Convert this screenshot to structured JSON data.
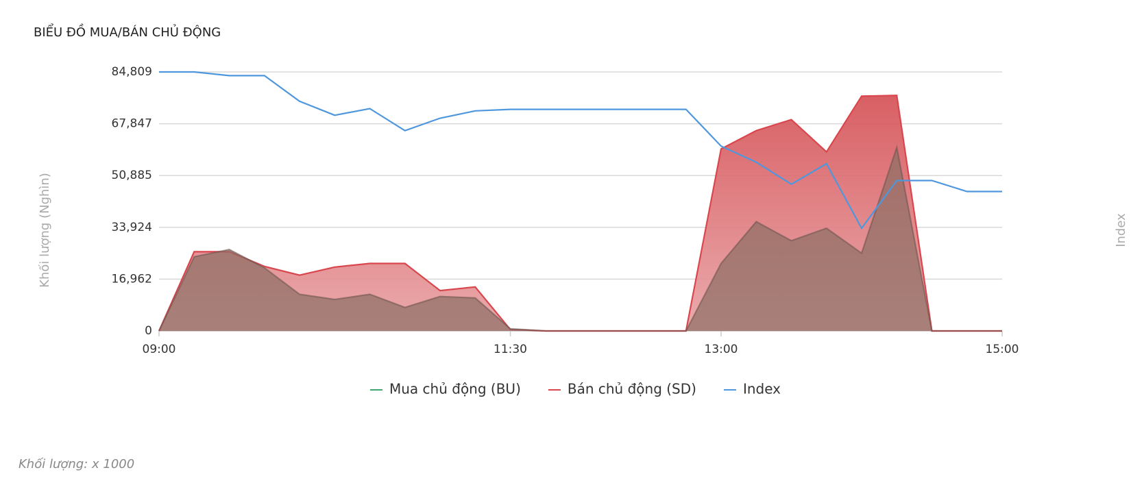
{
  "chart_data": {
    "type": "area",
    "title": "BIỂU ĐỒ MUA/BÁN CHỦ ĐỘNG",
    "y_label": "Khối lượng (Nghìn)",
    "y2_label": "Index",
    "footnote": "Khối lượng: x 1000",
    "categories": [
      "09:00",
      null,
      null,
      null,
      null,
      null,
      null,
      null,
      null,
      null,
      "11:30",
      null,
      null,
      null,
      null,
      null,
      "13:00",
      null,
      null,
      null,
      null,
      null,
      null,
      null,
      "15:00"
    ],
    "ylim": [
      0,
      84809
    ],
    "yticks": [
      0,
      {
        "value": 16962,
        "label": "16,962"
      },
      {
        "value": 33924,
        "label": "33,924"
      },
      {
        "value": 50885,
        "label": "50,885"
      },
      {
        "value": 67847,
        "label": "67,847"
      },
      {
        "value": 84809,
        "label": "84,809"
      }
    ],
    "grid": true,
    "legend": "bottom",
    "series": [
      {
        "name": "Mua chủ động (BU)",
        "color": "#3fa66f",
        "values": [
          0,
          24265,
          26667,
          20662,
          12013,
          10331,
          12013,
          7688,
          11292,
          10812,
          721,
          0,
          0,
          0,
          0,
          0,
          22103,
          35797,
          29551,
          33635,
          25467,
          60063,
          0,
          0,
          0
        ]
      },
      {
        "name": "Bán chủ động (SD)",
        "color": "#d9464d",
        "values": [
          0,
          25947,
          25947,
          21142,
          18259,
          20902,
          22103,
          22103,
          13214,
          14415,
          480,
          0,
          0,
          0,
          0,
          0,
          59582,
          65589,
          69192,
          58621,
          76880,
          77120,
          0,
          0,
          0
        ]
      },
      {
        "name": "Index",
        "color": "#4f97dd",
        "line_only": true,
        "values": [
          84809,
          84809,
          83608,
          83608,
          75200,
          70634,
          72797,
          65589,
          69673,
          72075,
          72556,
          72556,
          72556,
          72556,
          72556,
          72556,
          60543,
          55257,
          48050,
          54777,
          33635,
          49251,
          49251,
          45647,
          45647
        ]
      }
    ]
  }
}
